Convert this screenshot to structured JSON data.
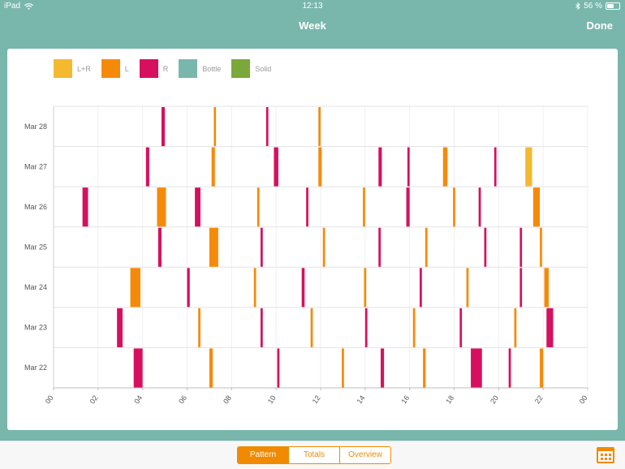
{
  "status": {
    "device": "iPad",
    "time": "12:13",
    "battery": "56 %",
    "battery_level": 0.56
  },
  "nav": {
    "title": "Week",
    "done_label": "Done"
  },
  "legend": [
    {
      "label": "L+R",
      "color": "#f4b92f"
    },
    {
      "label": "L",
      "color": "#f58a0a"
    },
    {
      "label": "R",
      "color": "#d6105e"
    },
    {
      "label": "Bottle",
      "color": "#79b7ad"
    },
    {
      "label": "Solid",
      "color": "#7aa83a"
    }
  ],
  "tabs": [
    {
      "label": "Pattern",
      "active": true
    },
    {
      "label": "Totals",
      "active": false
    },
    {
      "label": "Overview",
      "active": false
    }
  ],
  "chart_data": {
    "type": "bar",
    "title": "",
    "xlabel": "",
    "ylabel": "",
    "xlim": [
      0,
      24
    ],
    "x_ticks": [
      "00",
      "02",
      "04",
      "06",
      "08",
      "10",
      "12",
      "14",
      "16",
      "18",
      "20",
      "22",
      "00"
    ],
    "days": [
      "Mar 28",
      "Mar 27",
      "Mar 26",
      "Mar 25",
      "Mar 24",
      "Mar 23",
      "Mar 22"
    ],
    "grid": true,
    "legend_position": "top-left",
    "colors": {
      "L+R": "#f4b92f",
      "L": "#f58a0a",
      "R": "#d6105e",
      "Bottle": "#79b7ad",
      "Solid": "#7aa83a"
    },
    "sessions": [
      {
        "day": "Mar 28",
        "feeds": [
          {
            "type": "R",
            "start": 4.85,
            "end": 5.0
          },
          {
            "type": "L",
            "start": 7.2,
            "end": 7.3
          },
          {
            "type": "R",
            "start": 9.55,
            "end": 9.65
          },
          {
            "type": "L",
            "start": 11.9,
            "end": 12.0
          }
        ]
      },
      {
        "day": "Mar 27",
        "feeds": [
          {
            "type": "R",
            "start": 4.15,
            "end": 4.3
          },
          {
            "type": "L",
            "start": 7.1,
            "end": 7.25
          },
          {
            "type": "R",
            "start": 9.9,
            "end": 10.1
          },
          {
            "type": "L",
            "start": 11.9,
            "end": 12.05
          },
          {
            "type": "R",
            "start": 14.6,
            "end": 14.75
          },
          {
            "type": "R",
            "start": 15.9,
            "end": 16.0
          },
          {
            "type": "L",
            "start": 17.5,
            "end": 17.7
          },
          {
            "type": "R",
            "start": 19.8,
            "end": 19.9
          },
          {
            "type": "L+R",
            "start": 21.2,
            "end": 21.5
          }
        ]
      },
      {
        "day": "Mar 26",
        "feeds": [
          {
            "type": "R",
            "start": 1.3,
            "end": 1.55
          },
          {
            "type": "L",
            "start": 4.65,
            "end": 5.05
          },
          {
            "type": "R",
            "start": 6.35,
            "end": 6.6
          },
          {
            "type": "L",
            "start": 9.15,
            "end": 9.25
          },
          {
            "type": "R",
            "start": 11.35,
            "end": 11.45
          },
          {
            "type": "L",
            "start": 13.9,
            "end": 14.0
          },
          {
            "type": "R",
            "start": 15.85,
            "end": 16.0
          },
          {
            "type": "L",
            "start": 17.95,
            "end": 18.05
          },
          {
            "type": "R",
            "start": 19.1,
            "end": 19.2
          },
          {
            "type": "L",
            "start": 21.55,
            "end": 21.85
          }
        ]
      },
      {
        "day": "Mar 25",
        "feeds": [
          {
            "type": "R",
            "start": 4.7,
            "end": 4.85
          },
          {
            "type": "L",
            "start": 7.0,
            "end": 7.4
          },
          {
            "type": "R",
            "start": 9.3,
            "end": 9.4
          },
          {
            "type": "L",
            "start": 12.1,
            "end": 12.2
          },
          {
            "type": "R",
            "start": 14.6,
            "end": 14.7
          },
          {
            "type": "L",
            "start": 16.7,
            "end": 16.8
          },
          {
            "type": "R",
            "start": 19.35,
            "end": 19.45
          },
          {
            "type": "R",
            "start": 20.95,
            "end": 21.05
          },
          {
            "type": "L",
            "start": 21.85,
            "end": 21.95
          }
        ]
      },
      {
        "day": "Mar 24",
        "feeds": [
          {
            "type": "L",
            "start": 3.45,
            "end": 3.9
          },
          {
            "type": "R",
            "start": 6.0,
            "end": 6.12
          },
          {
            "type": "L",
            "start": 9.0,
            "end": 9.1
          },
          {
            "type": "R",
            "start": 11.15,
            "end": 11.28
          },
          {
            "type": "L",
            "start": 13.95,
            "end": 14.05
          },
          {
            "type": "R",
            "start": 16.45,
            "end": 16.55
          },
          {
            "type": "L",
            "start": 18.55,
            "end": 18.65
          },
          {
            "type": "R",
            "start": 20.95,
            "end": 21.05
          },
          {
            "type": "L",
            "start": 22.05,
            "end": 22.25
          }
        ]
      },
      {
        "day": "Mar 23",
        "feeds": [
          {
            "type": "R",
            "start": 2.85,
            "end": 3.1
          },
          {
            "type": "L",
            "start": 6.5,
            "end": 6.6
          },
          {
            "type": "R",
            "start": 9.3,
            "end": 9.4
          },
          {
            "type": "L",
            "start": 11.55,
            "end": 11.65
          },
          {
            "type": "R",
            "start": 14.0,
            "end": 14.1
          },
          {
            "type": "L",
            "start": 16.15,
            "end": 16.25
          },
          {
            "type": "R",
            "start": 18.25,
            "end": 18.35
          },
          {
            "type": "L",
            "start": 20.7,
            "end": 20.8
          },
          {
            "type": "R",
            "start": 22.15,
            "end": 22.45
          }
        ]
      },
      {
        "day": "Mar 22",
        "feeds": [
          {
            "type": "R",
            "start": 3.6,
            "end": 4.0
          },
          {
            "type": "L",
            "start": 7.0,
            "end": 7.15
          },
          {
            "type": "R",
            "start": 10.05,
            "end": 10.15
          },
          {
            "type": "L",
            "start": 12.95,
            "end": 13.05
          },
          {
            "type": "R",
            "start": 14.7,
            "end": 14.85
          },
          {
            "type": "L",
            "start": 16.6,
            "end": 16.72
          },
          {
            "type": "R",
            "start": 18.75,
            "end": 19.25
          },
          {
            "type": "R",
            "start": 20.45,
            "end": 20.55
          },
          {
            "type": "L",
            "start": 21.85,
            "end": 22.0
          }
        ]
      }
    ]
  }
}
